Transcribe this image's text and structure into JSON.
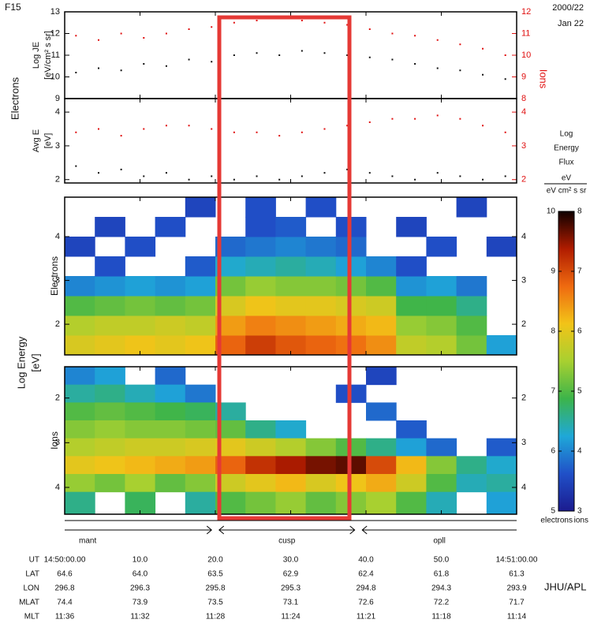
{
  "header": {
    "satellite": "F15",
    "date": "2000/22",
    "day": "Jan 22"
  },
  "shared_labels": {
    "electrons_group": "Electrons",
    "ions_group": "Ions",
    "energy_axis": [
      "Log Energy",
      "[eV]"
    ]
  },
  "chart_data": [
    {
      "type": "scatter",
      "ylabel": [
        "Log JE",
        "[eV/cm² s sr]"
      ],
      "xlim": [
        0,
        60
      ],
      "xticks": [
        0,
        10,
        20,
        30,
        40,
        50,
        60
      ],
      "ylim": [
        9,
        13
      ],
      "yticks": [
        9,
        10,
        11,
        12,
        13
      ],
      "y2lim": [
        8,
        12
      ],
      "y2ticks": [
        8,
        9,
        10,
        11,
        12
      ],
      "x": [
        1.5,
        4.5,
        7.5,
        10.5,
        13.5,
        16.5,
        19.5,
        22.5,
        25.5,
        28.5,
        31.5,
        34.5,
        37.5,
        40.5,
        43.5,
        46.5,
        49.5,
        52.5,
        55.5,
        58.5
      ],
      "series": [
        {
          "name": "Electrons",
          "color": "#111111",
          "values": [
            10.2,
            10.4,
            10.3,
            10.6,
            10.5,
            10.8,
            10.7,
            11.0,
            11.1,
            11.0,
            11.2,
            11.1,
            11.0,
            10.9,
            10.8,
            10.6,
            10.4,
            10.3,
            10.1,
            9.9
          ]
        },
        {
          "name": "Ions",
          "color": "#e01010",
          "axis": "y2",
          "values": [
            10.9,
            10.7,
            11.0,
            10.8,
            11.0,
            11.2,
            11.3,
            11.5,
            11.6,
            11.7,
            11.6,
            11.5,
            11.4,
            11.2,
            11.0,
            10.9,
            10.7,
            10.5,
            10.3,
            10.0
          ]
        }
      ]
    },
    {
      "type": "scatter",
      "ylabel": [
        "Avg E",
        "[eV]"
      ],
      "xlim": [
        0,
        60
      ],
      "ylim": [
        1.9,
        4.4
      ],
      "yticks": [
        2,
        3,
        4
      ],
      "y2lim": [
        1.9,
        4.4
      ],
      "y2ticks": [
        2,
        3,
        4
      ],
      "x": [
        1.5,
        4.5,
        7.5,
        10.5,
        13.5,
        16.5,
        19.5,
        22.5,
        25.5,
        28.5,
        31.5,
        34.5,
        37.5,
        40.5,
        43.5,
        46.5,
        49.5,
        52.5,
        55.5,
        58.5
      ],
      "series": [
        {
          "name": "Electrons",
          "color": "#111111",
          "values": [
            2.4,
            2.2,
            2.3,
            2.1,
            2.2,
            2.0,
            2.1,
            2.0,
            2.1,
            2.0,
            2.1,
            2.2,
            2.3,
            2.2,
            2.1,
            2.0,
            2.2,
            2.1,
            2.0,
            2.1
          ]
        },
        {
          "name": "Ions",
          "color": "#e01010",
          "axis": "y2",
          "values": [
            3.4,
            3.5,
            3.3,
            3.5,
            3.6,
            3.6,
            3.5,
            3.4,
            3.4,
            3.3,
            3.4,
            3.5,
            3.6,
            3.7,
            3.8,
            3.8,
            3.9,
            3.8,
            3.6,
            3.4
          ]
        }
      ]
    },
    {
      "type": "spectrogram",
      "label": "Electrons",
      "tick_color": "#111111",
      "xlim": [
        0,
        60
      ],
      "ylim": [
        1.3,
        4.9
      ],
      "yticks": [
        2,
        3,
        4
      ],
      "inverted": false,
      "clim": [
        5,
        10
      ],
      "x_bins": [
        0,
        4,
        8,
        12,
        16,
        20,
        24,
        28,
        32,
        36,
        40,
        44,
        48,
        52,
        56,
        60
      ],
      "y_bins": [
        1.3,
        1.75,
        2.2,
        2.65,
        3.1,
        3.55,
        4.0,
        4.45,
        4.9
      ],
      "values": [
        [
          7.9,
          8.0,
          8.1,
          8.0,
          8.1,
          8.8,
          9.1,
          8.9,
          8.8,
          8.7,
          8.5,
          7.7,
          7.6,
          7.2,
          6.2
        ],
        [
          7.6,
          7.7,
          7.7,
          7.8,
          7.7,
          8.4,
          8.6,
          8.5,
          8.4,
          8.3,
          8.2,
          7.4,
          7.3,
          7.0,
          null
        ],
        [
          7.0,
          7.1,
          7.2,
          7.1,
          7.2,
          7.9,
          8.1,
          8.0,
          8.0,
          7.9,
          7.8,
          6.9,
          6.9,
          6.6,
          null
        ],
        [
          6.0,
          6.1,
          6.2,
          6.1,
          6.2,
          7.2,
          7.4,
          7.3,
          7.3,
          7.2,
          7.0,
          6.1,
          6.2,
          5.9,
          null
        ],
        [
          null,
          5.6,
          null,
          null,
          5.7,
          6.3,
          6.4,
          6.5,
          6.4,
          6.2,
          6.0,
          5.6,
          null,
          null,
          null
        ],
        [
          5.5,
          null,
          5.6,
          null,
          null,
          5.8,
          5.9,
          6.0,
          5.9,
          5.8,
          null,
          null,
          5.6,
          null,
          5.5
        ],
        [
          null,
          5.5,
          null,
          5.6,
          null,
          null,
          5.6,
          5.7,
          null,
          5.6,
          null,
          5.5,
          null,
          null,
          null
        ],
        [
          null,
          null,
          null,
          null,
          5.5,
          null,
          5.6,
          null,
          5.6,
          null,
          null,
          null,
          null,
          5.5,
          null
        ]
      ]
    },
    {
      "type": "spectrogram",
      "label": "Ions",
      "tick_color": "#e01010",
      "xlim": [
        0,
        60
      ],
      "ylim": [
        1.3,
        4.6
      ],
      "yticks": [
        2,
        3,
        4
      ],
      "inverted": true,
      "clim": [
        3,
        8
      ],
      "x_bins": [
        0,
        4,
        8,
        12,
        16,
        20,
        24,
        28,
        32,
        36,
        40,
        44,
        48,
        52,
        56,
        60
      ],
      "y_bins": [
        1.3,
        1.7,
        2.1,
        2.5,
        2.9,
        3.3,
        3.7,
        4.1,
        4.6
      ],
      "values": [
        [
          4.0,
          4.2,
          null,
          3.8,
          null,
          null,
          null,
          null,
          null,
          null,
          3.5,
          null,
          null,
          null,
          null
        ],
        [
          4.5,
          4.6,
          4.4,
          4.2,
          3.9,
          null,
          null,
          null,
          null,
          3.6,
          null,
          null,
          null,
          null,
          null
        ],
        [
          5.0,
          5.1,
          5.0,
          4.9,
          4.8,
          4.5,
          null,
          null,
          null,
          null,
          3.8,
          null,
          null,
          null,
          null
        ],
        [
          5.3,
          5.4,
          5.3,
          5.3,
          5.2,
          5.1,
          4.6,
          4.3,
          null,
          null,
          null,
          3.7,
          null,
          null,
          null
        ],
        [
          5.6,
          5.7,
          5.8,
          5.8,
          5.9,
          6.0,
          5.8,
          5.6,
          5.3,
          5.0,
          4.6,
          4.2,
          3.8,
          null,
          3.7
        ],
        [
          6.0,
          6.1,
          6.2,
          6.3,
          6.4,
          6.8,
          7.2,
          7.4,
          7.6,
          7.7,
          7.0,
          6.2,
          5.3,
          4.6,
          4.3
        ],
        [
          5.4,
          5.2,
          5.5,
          5.1,
          5.3,
          5.8,
          6.0,
          6.2,
          5.9,
          6.1,
          6.3,
          5.8,
          5.0,
          4.4,
          4.5
        ],
        [
          4.6,
          null,
          4.8,
          null,
          4.5,
          5.0,
          5.2,
          5.4,
          5.1,
          5.3,
          5.5,
          5.0,
          4.4,
          null,
          4.2
        ]
      ]
    }
  ],
  "colorbar": {
    "title": [
      "Log",
      "Energy",
      "Flux"
    ],
    "unit_top": "eV",
    "unit_bottom": "eV cm² s sr",
    "colormap": [
      "#1b1b8f",
      "#2050c8",
      "#1fa8d8",
      "#3cb44a",
      "#a8d030",
      "#f2c418",
      "#ef6a10",
      "#b01c00",
      "#100000"
    ],
    "left": {
      "label": "electrons",
      "lim": [
        5,
        10
      ],
      "ticks": [
        5,
        6,
        7,
        8,
        9,
        10
      ]
    },
    "right": {
      "label": "ions",
      "color": "#e01010",
      "lim": [
        3,
        8
      ],
      "ticks": [
        3,
        4,
        5,
        6,
        7,
        8
      ]
    }
  },
  "regions": [
    {
      "label": "mant",
      "xlim": [
        0,
        19.5
      ]
    },
    {
      "label": "cusp",
      "xlim": [
        20.5,
        38.5
      ]
    },
    {
      "label": "opll",
      "xlim": [
        39.5,
        60
      ]
    }
  ],
  "ephemeris": {
    "rows": [
      {
        "label": "UT",
        "values": [
          "14:50:00.00",
          "10.0",
          "20.0",
          "30.0",
          "40.0",
          "50.0",
          "14:51:00.00"
        ]
      },
      {
        "label": "LAT",
        "values": [
          "64.6",
          "64.0",
          "63.5",
          "62.9",
          "62.4",
          "61.8",
          "61.3"
        ]
      },
      {
        "label": "LON",
        "values": [
          "296.8",
          "296.3",
          "295.8",
          "295.3",
          "294.8",
          "294.3",
          "293.9"
        ]
      },
      {
        "label": "MLAT",
        "values": [
          "74.4",
          "73.9",
          "73.5",
          "73.1",
          "72.6",
          "72.2",
          "71.7"
        ]
      },
      {
        "label": "MLT",
        "values": [
          "11:36",
          "11:32",
          "11:28",
          "11:24",
          "11:21",
          "11:18",
          "11:14"
        ]
      }
    ]
  },
  "credit": "JHU/APL"
}
